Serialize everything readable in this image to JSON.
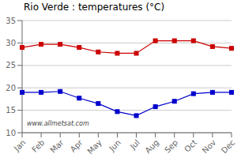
{
  "chart_data": {
    "type": "line",
    "title": "Rio Verde : temperatures (°C)",
    "categories": [
      "Jan",
      "Feb",
      "Mar",
      "Apr",
      "May",
      "Jun",
      "Jul",
      "Aug",
      "Sep",
      "Oct",
      "Nov",
      "Dec"
    ],
    "series": [
      {
        "color": "#cc0000",
        "marker": "square",
        "values": [
          29.0,
          29.7,
          29.7,
          29.0,
          28.0,
          27.7,
          27.7,
          30.5,
          30.5,
          30.5,
          29.2,
          28.8
        ]
      },
      {
        "color": "#0000cc",
        "marker": "square",
        "values": [
          19.0,
          19.0,
          19.2,
          17.7,
          16.5,
          14.7,
          13.8,
          15.8,
          17.0,
          18.7,
          19.0,
          19.0
        ]
      }
    ],
    "ylim": [
      10,
      35
    ],
    "yticks": [
      10,
      15,
      20,
      25,
      30,
      35
    ],
    "grid": "y",
    "annotations": [
      "www.allmetsat.com"
    ]
  }
}
